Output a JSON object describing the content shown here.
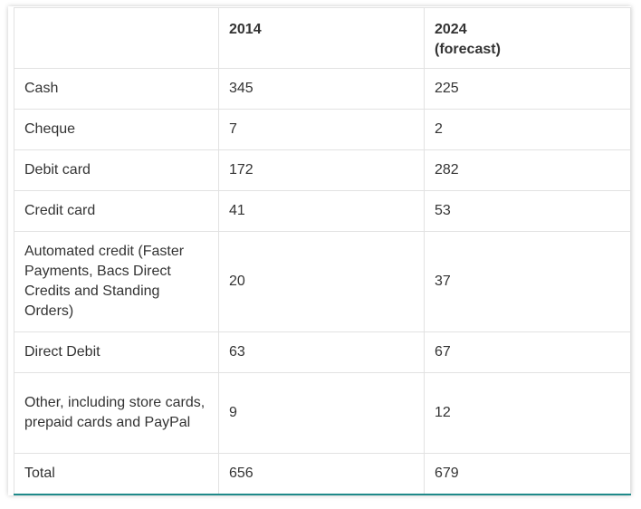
{
  "table": {
    "headers": [
      "",
      "2014",
      "2024\n(forecast)"
    ],
    "header_2024_line1": "2024",
    "header_2024_line2": "(forecast)",
    "rows": [
      {
        "label": "Cash",
        "y2014": "345",
        "y2024": "225"
      },
      {
        "label": "Cheque",
        "y2014": "7",
        "y2024": "2"
      },
      {
        "label": "Debit card",
        "y2014": "172",
        "y2024": "282"
      },
      {
        "label": "Credit card",
        "y2014": "41",
        "y2024": "53"
      },
      {
        "label": "Automated credit (Faster Payments, Bacs Direct Credits and Standing Orders)",
        "y2014": "20",
        "y2024": "37"
      },
      {
        "label": "Direct Debit",
        "y2014": "63",
        "y2024": "67"
      },
      {
        "label": "Other, including store cards, prepaid cards and PayPal",
        "y2014": "9",
        "y2024": "12"
      },
      {
        "label": "Total",
        "y2014": "656",
        "y2024": "679"
      }
    ]
  },
  "colors": {
    "text": "#333333",
    "border": "#e2e2e2",
    "bottom_rule": "#1f8a8a"
  }
}
